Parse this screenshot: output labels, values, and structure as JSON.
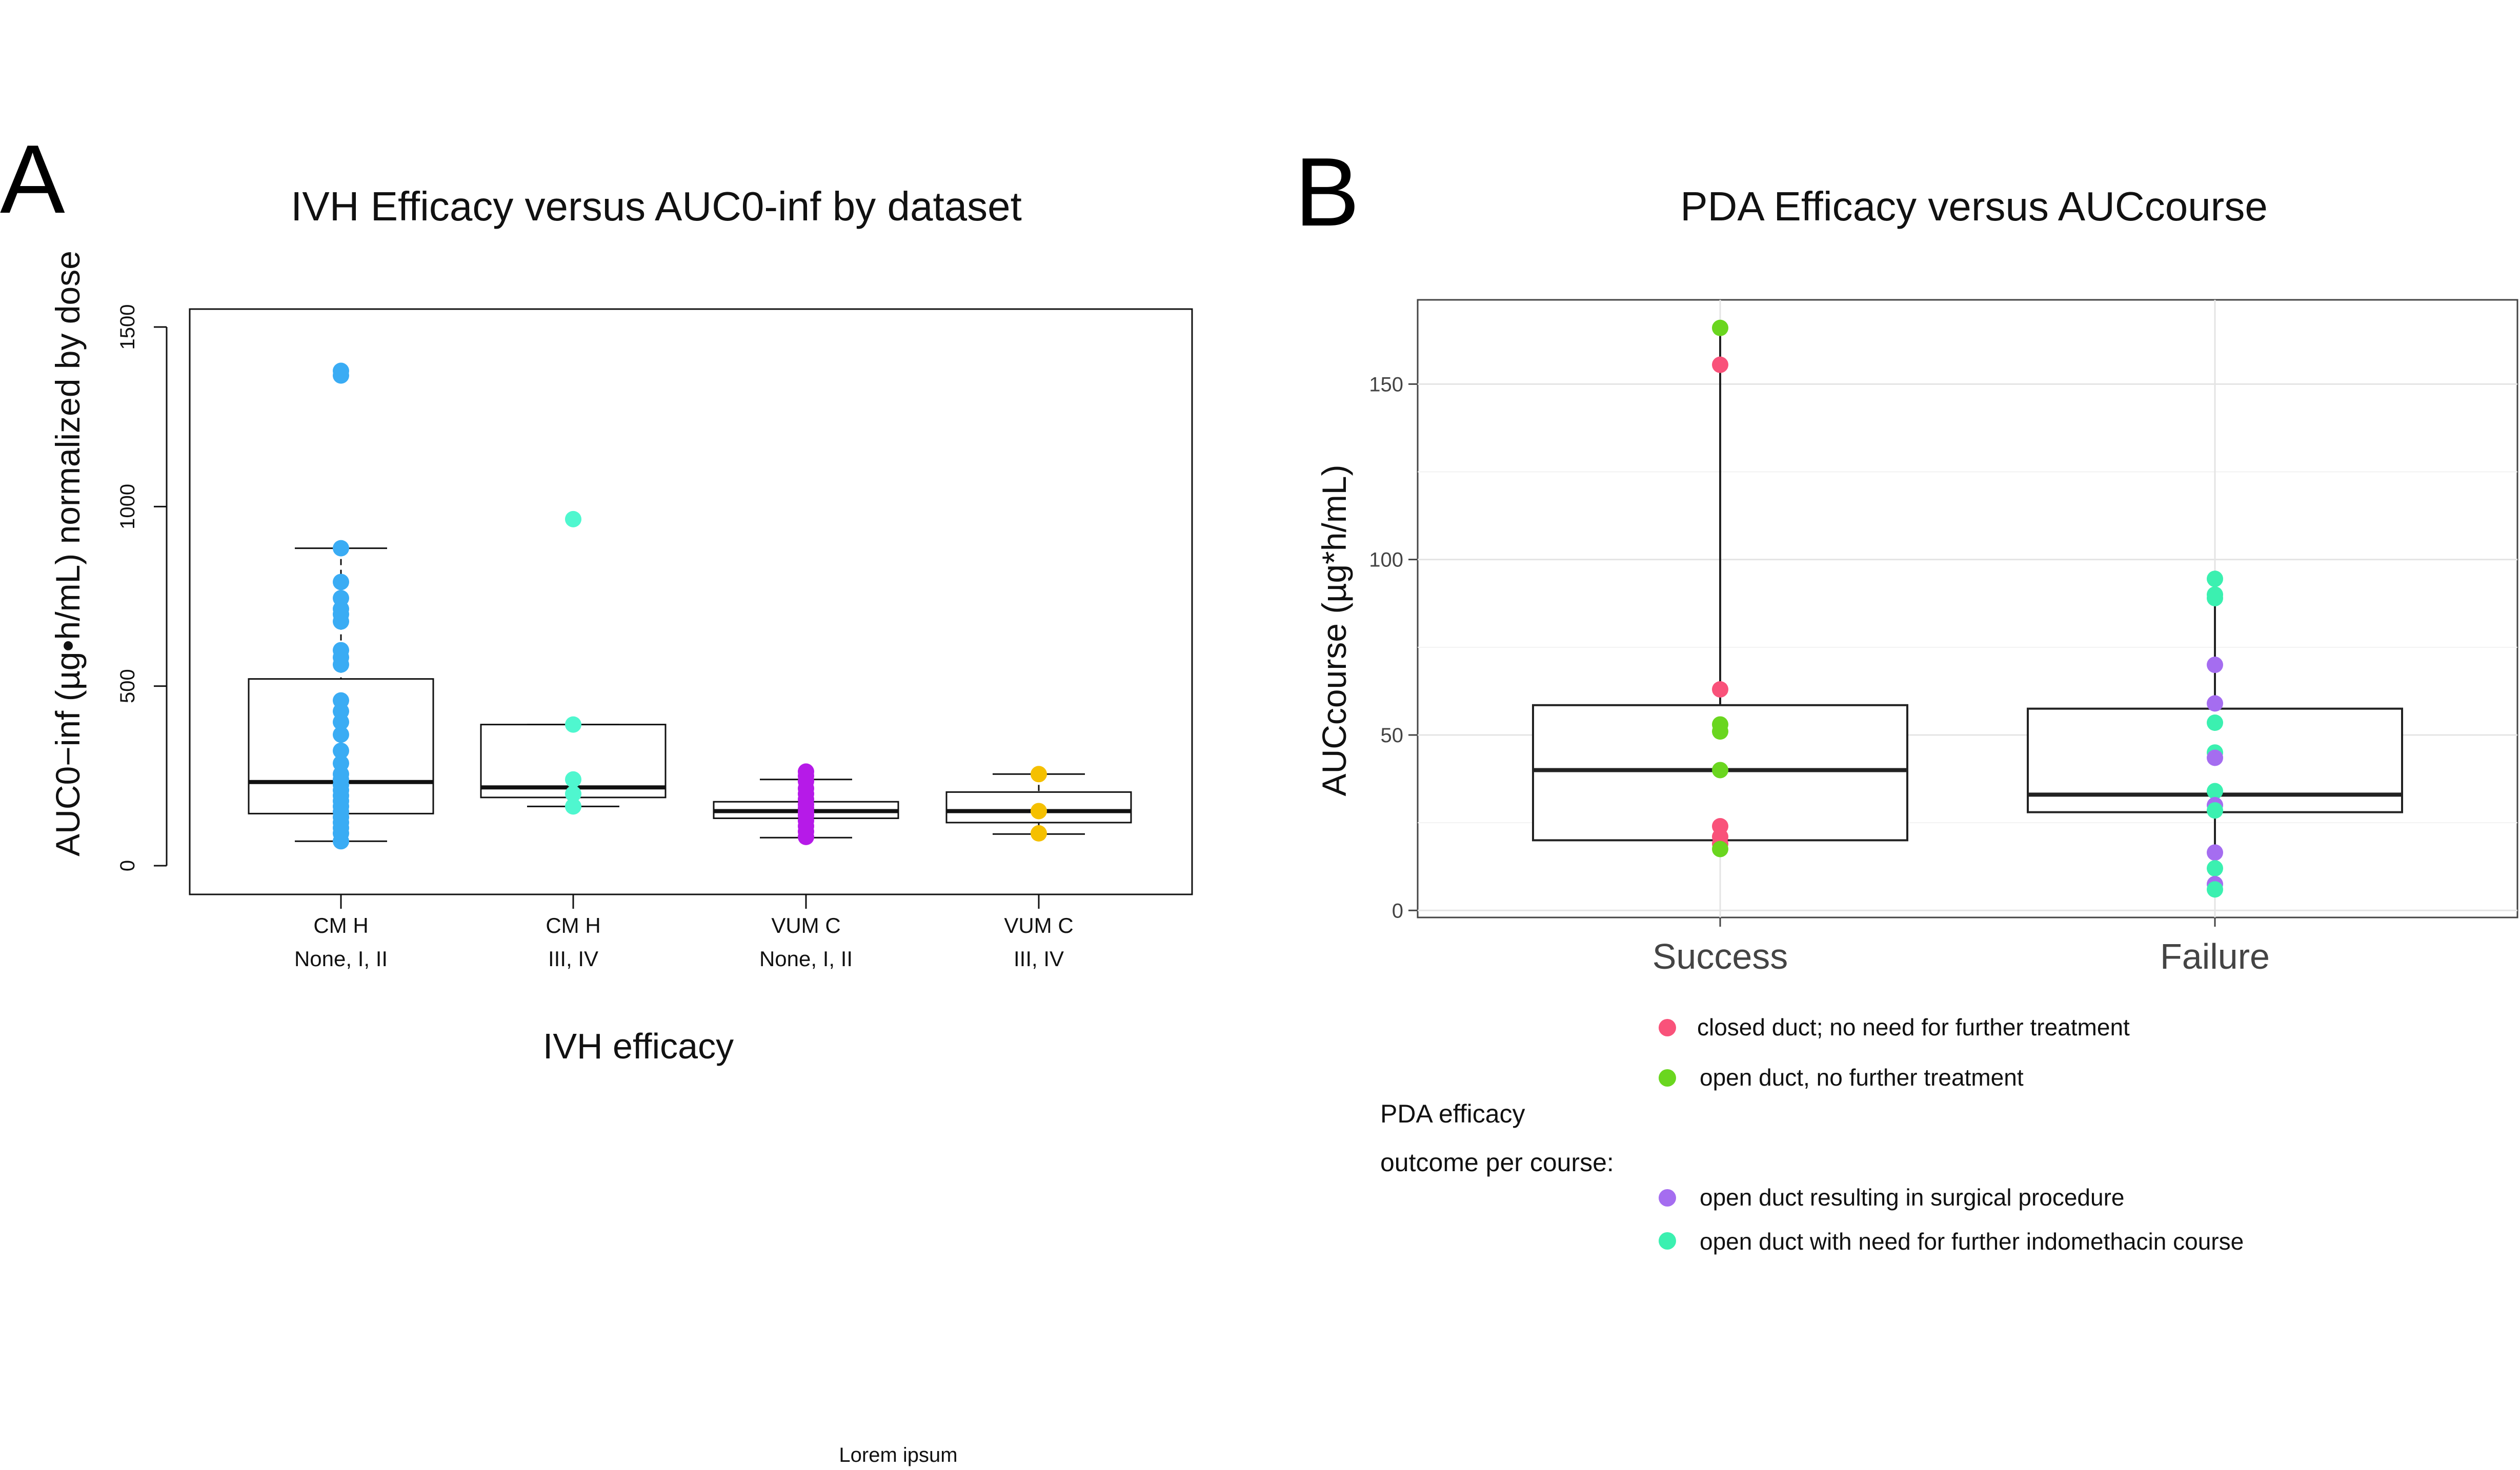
{
  "panel_a": {
    "letter": "A",
    "legend_heading": "",
    "legend": [],
    "footer": "Lorem ipsum"
  },
  "panel_b": {
    "letter": "B",
    "legend_heading": [
      "PDA efficacy",
      "outcome per course:"
    ],
    "legend": [
      {
        "label": "closed duct; no need for further treatment",
        "color": "#f9527a"
      },
      {
        "label": "open duct, no further treatment",
        "color": "#6ad61f"
      },
      {
        "label": "open duct resulting in surgical procedure",
        "color": "#a56df0"
      },
      {
        "label": "open duct with need for further indomethacin course",
        "color": "#3bf0b0"
      }
    ]
  },
  "colors": {
    "chm_low": "#3aacf4",
    "chm_high": "#4ff7cf",
    "vumc_low": "#b61ae8",
    "vumc_high": "#f5c000",
    "closed": "#f9527a",
    "open_no_treat": "#6ad61f",
    "surgical": "#a56df0",
    "indomethacin": "#3bf0b0"
  },
  "chart_data": [
    {
      "type": "box",
      "title": "IVH Efficacy versus AUC0-inf by dataset",
      "xlabel": "IVH efficacy",
      "ylabel": "AUC0−inf (µg•h/mL) normalized by dose",
      "ylim": [
        -80,
        1550
      ],
      "yticks": [
        0,
        500,
        1000,
        1500
      ],
      "grid": false,
      "categories": [
        {
          "line1": "CM H",
          "line2": "None, I, II"
        },
        {
          "line1": "CM H",
          "line2": "III, IV"
        },
        {
          "line1": "VUM  C",
          "line2": "None, I, II"
        },
        {
          "line1": "VUM  C",
          "line2": "III, IV"
        }
      ],
      "boxes": [
        {
          "q1": 145,
          "median": 233,
          "q3": 520,
          "whisker_low": 68,
          "whisker_high": 884,
          "color": "chm_low",
          "points": [
            68,
            90,
            105,
            120,
            135,
            150,
            165,
            180,
            195,
            210,
            225,
            240,
            255,
            285,
            320,
            365,
            400,
            430,
            460,
            560,
            580,
            600,
            680,
            700,
            715,
            745,
            790,
            884,
            1365,
            1378
          ]
        },
        {
          "q1": 190,
          "median": 218,
          "q3": 393,
          "whisker_low": 165,
          "whisker_high": 393,
          "color": "chm_high",
          "points": [
            165,
            200,
            240,
            393,
            965
          ]
        },
        {
          "q1": 132,
          "median": 152,
          "q3": 178,
          "whisker_low": 78,
          "whisker_high": 240,
          "color": "vumc_low",
          "points": [
            80,
            95,
            110,
            125,
            140,
            150,
            160,
            170,
            185,
            200,
            215,
            235,
            250,
            262
          ]
        },
        {
          "q1": 120,
          "median": 152,
          "q3": 205,
          "whisker_low": 88,
          "whisker_high": 255,
          "color": "vumc_high",
          "points": [
            90,
            152,
            255
          ]
        }
      ]
    },
    {
      "type": "box",
      "title": "PDA Efficacy versus AUCcourse",
      "xlabel": "",
      "ylabel": "AUCcourse (µg*h/mL)",
      "ylim": [
        -2,
        174
      ],
      "yticks": [
        0,
        50,
        100,
        150
      ],
      "grid": true,
      "categories": [
        {
          "line1": "Success",
          "line2": ""
        },
        {
          "line1": "Failure",
          "line2": ""
        }
      ],
      "boxes": [
        {
          "q1": 20,
          "median": 40,
          "q3": 58.5,
          "whisker_low": 17,
          "whisker_high": 166,
          "points": [
            {
              "y": 166,
              "color": "open_no_treat"
            },
            {
              "y": 155.5,
              "color": "closed"
            },
            {
              "y": 63,
              "color": "closed"
            },
            {
              "y": 53,
              "color": "open_no_treat"
            },
            {
              "y": 51,
              "color": "open_no_treat"
            },
            {
              "y": 40,
              "color": "open_no_treat"
            },
            {
              "y": 24,
              "color": "closed"
            },
            {
              "y": 21,
              "color": "closed"
            },
            {
              "y": 19,
              "color": "closed"
            },
            {
              "y": 17.5,
              "color": "open_no_treat"
            }
          ]
        },
        {
          "q1": 28,
          "median": 33,
          "q3": 57.5,
          "whisker_low": 6,
          "whisker_high": 95,
          "points": [
            {
              "y": 94.5,
              "color": "indomethacin"
            },
            {
              "y": 90,
              "color": "indomethacin"
            },
            {
              "y": 89,
              "color": "indomethacin"
            },
            {
              "y": 70,
              "color": "surgical"
            },
            {
              "y": 59,
              "color": "surgical"
            },
            {
              "y": 53.5,
              "color": "indomethacin"
            },
            {
              "y": 45,
              "color": "indomethacin"
            },
            {
              "y": 43.5,
              "color": "surgical"
            },
            {
              "y": 34,
              "color": "indomethacin"
            },
            {
              "y": 30,
              "color": "surgical"
            },
            {
              "y": 28.5,
              "color": "indomethacin"
            },
            {
              "y": 16.5,
              "color": "surgical"
            },
            {
              "y": 12,
              "color": "indomethacin"
            },
            {
              "y": 7.5,
              "color": "surgical"
            },
            {
              "y": 6,
              "color": "indomethacin"
            }
          ]
        }
      ]
    }
  ]
}
